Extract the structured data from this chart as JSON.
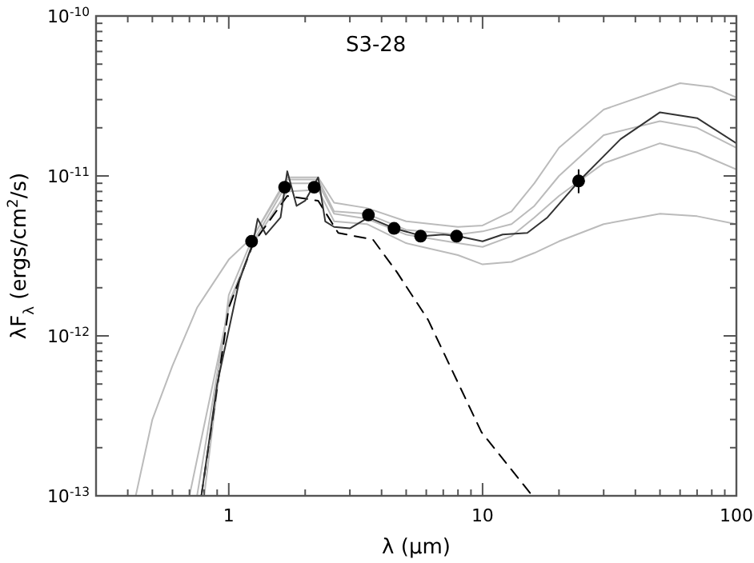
{
  "chart_data": {
    "type": "line",
    "title": "S3-28",
    "xlabel": "λ (μm)",
    "ylabel": "λF$_{λ}$ (ergs/cm$^{2}$/s)",
    "log": "xy",
    "grid": false,
    "xlim": [
      0.3,
      100
    ],
    "ylim": [
      1e-13,
      1e-10
    ],
    "xticks": [
      {
        "value": 0.4,
        "label": null
      },
      {
        "value": 0.5,
        "label": null
      },
      {
        "value": 0.6,
        "label": null
      },
      {
        "value": 0.7,
        "label": null
      },
      {
        "value": 0.8,
        "label": null
      },
      {
        "value": 0.9,
        "label": null
      },
      1,
      {
        "value": 2,
        "label": null
      },
      {
        "value": 3,
        "label": null
      },
      {
        "value": 4,
        "label": null
      },
      {
        "value": 5,
        "label": null
      },
      {
        "value": 6,
        "label": null
      },
      {
        "value": 7,
        "label": null
      },
      {
        "value": 8,
        "label": null
      },
      {
        "value": 9,
        "label": null
      },
      10,
      {
        "value": 20,
        "label": null
      },
      {
        "value": 30,
        "label": null
      },
      {
        "value": 40,
        "label": null
      },
      {
        "value": 50,
        "label": null
      },
      {
        "value": 60,
        "label": null
      },
      {
        "value": 70,
        "label": null
      },
      {
        "value": 80,
        "label": null
      },
      {
        "value": 90,
        "label": null
      },
      100
    ],
    "yticks": [
      {
        "value": 1e-13,
        "label": "10$^{-13}$"
      },
      {
        "value": 2e-13,
        "label": null
      },
      {
        "value": 3e-13,
        "label": null
      },
      {
        "value": 4e-13,
        "label": null
      },
      {
        "value": 5e-13,
        "label": null
      },
      {
        "value": 6e-13,
        "label": null
      },
      {
        "value": 7e-13,
        "label": null
      },
      {
        "value": 8e-13,
        "label": null
      },
      {
        "value": 9e-13,
        "label": null
      },
      {
        "value": 1e-12,
        "label": "10$^{-12}$"
      },
      {
        "value": 2e-12,
        "label": null
      },
      {
        "value": 3e-12,
        "label": null
      },
      {
        "value": 4e-12,
        "label": null
      },
      {
        "value": 5e-12,
        "label": null
      },
      {
        "value": 6e-12,
        "label": null
      },
      {
        "value": 7e-12,
        "label": null
      },
      {
        "value": 8e-12,
        "label": null
      },
      {
        "value": 9e-12,
        "label": null
      },
      {
        "value": 1e-11,
        "label": "10$^{-11}$"
      },
      {
        "value": 2e-11,
        "label": null
      },
      {
        "value": 3e-11,
        "label": null
      },
      {
        "value": 4e-11,
        "label": null
      },
      {
        "value": 5e-11,
        "label": null
      },
      {
        "value": 6e-11,
        "label": null
      },
      {
        "value": 7e-11,
        "label": null
      },
      {
        "value": 8e-11,
        "label": null
      },
      {
        "value": 9e-11,
        "label": null
      },
      {
        "value": 1e-10,
        "label": "10$^{-10}$"
      }
    ],
    "series": [
      {
        "color": "#bbbbbb",
        "marker": "none",
        "line_style": "solid",
        "x": [
          0.43,
          0.5,
          0.6,
          0.75,
          1.0,
          1.25,
          1.7,
          2.25,
          2.6,
          3.5,
          5,
          8,
          10,
          13,
          16,
          20,
          30,
          50,
          70,
          100
        ],
        "values": [
          1e-13,
          3e-13,
          6.5e-13,
          1.5e-12,
          3e-12,
          4.2e-12,
          9.5e-12,
          9.5e-12,
          6e-12,
          5.8e-12,
          4.6e-12,
          4.3e-12,
          4.5e-12,
          5e-12,
          6.5e-12,
          1e-11,
          1.8e-11,
          2.2e-11,
          2e-11,
          1.5e-11
        ]
      },
      {
        "color": "#bbbbbb",
        "marker": "none",
        "line_style": "solid",
        "x": [
          0.8,
          1.0,
          1.25,
          1.7,
          2.25,
          2.6,
          3.5,
          5,
          8,
          10,
          13,
          16,
          20,
          30,
          60,
          80,
          100
        ],
        "values": [
          1e-13,
          1.8e-12,
          4.2e-12,
          9.8e-12,
          9.8e-12,
          6.8e-12,
          6.3e-12,
          5.2e-12,
          4.8e-12,
          4.9e-12,
          6e-12,
          9e-12,
          1.5e-11,
          2.6e-11,
          3.8e-11,
          3.6e-11,
          3.1e-11
        ]
      },
      {
        "color": "#bbbbbb",
        "marker": "none",
        "line_style": "solid",
        "x": [
          0.75,
          1.0,
          1.25,
          1.7,
          2.25,
          2.6,
          3.5,
          5,
          8,
          10,
          13,
          16,
          20,
          30,
          50,
          70,
          100
        ],
        "values": [
          1e-13,
          1.6e-12,
          3.8e-12,
          8e-12,
          8.2e-12,
          5.2e-12,
          5e-12,
          3.8e-12,
          3.2e-12,
          2.8e-12,
          2.9e-12,
          3.3e-12,
          3.9e-12,
          5e-12,
          5.8e-12,
          5.6e-12,
          5e-12
        ]
      },
      {
        "color": "#bbbbbb",
        "marker": "none",
        "line_style": "solid",
        "x": [
          0.7,
          1.0,
          1.25,
          1.7,
          2.25,
          2.6,
          3.5,
          5,
          8,
          10,
          13,
          16,
          20,
          30,
          50,
          70,
          100
        ],
        "values": [
          1e-13,
          1.5e-12,
          3.9e-12,
          9e-12,
          9e-12,
          5.8e-12,
          5.4e-12,
          4.3e-12,
          3.8e-12,
          3.6e-12,
          4.2e-12,
          5.5e-12,
          7.5e-12,
          1.2e-11,
          1.6e-11,
          1.4e-11,
          1.1e-11
        ]
      },
      {
        "color": "#000000",
        "marker": "none",
        "line_style": "dashed",
        "x": [
          0.78,
          1.0,
          1.25,
          1.7,
          2.25,
          2.7,
          3.7,
          4.6,
          6.1,
          9.9,
          15.7
        ],
        "values": [
          1e-13,
          1.5e-12,
          3.8e-12,
          7.5e-12,
          7e-12,
          4.4e-12,
          4e-12,
          2.5e-12,
          1.26e-12,
          2.5e-13,
          1e-13
        ]
      },
      {
        "color": "#333333",
        "marker": "none",
        "line_style": "solid",
        "x": [
          0.78,
          0.9,
          1.1,
          1.25,
          1.3,
          1.4,
          1.6,
          1.7,
          1.85,
          2.0,
          2.25,
          2.4,
          2.6,
          3.0,
          3.55,
          4.5,
          5.8,
          7,
          8,
          10,
          12,
          15,
          18,
          24,
          35,
          50,
          70,
          100
        ],
        "values": [
          1e-13,
          5e-13,
          2.2e-12,
          3.9e-12,
          5.4e-12,
          4.3e-12,
          5.5e-12,
          1.07e-11,
          6.5e-12,
          7e-12,
          9.8e-12,
          5.2e-12,
          4.8e-12,
          4.7e-12,
          5.5e-12,
          4.7e-12,
          4.2e-12,
          4.3e-12,
          4.2e-12,
          3.9e-12,
          4.3e-12,
          4.4e-12,
          5.5e-12,
          9.3e-12,
          1.7e-11,
          2.5e-11,
          2.3e-11,
          1.6e-11
        ]
      },
      {
        "type": "scatter",
        "color": "#000000",
        "marker": "circle",
        "x": [
          1.23,
          1.66,
          2.17,
          3.55,
          4.48,
          5.7,
          7.9,
          23.9
        ],
        "values": [
          3.9e-12,
          8.5e-12,
          8.5e-12,
          5.7e-12,
          4.7e-12,
          4.2e-12,
          4.2e-12,
          9.3e-12
        ],
        "errors": [
          null,
          null,
          null,
          null,
          null,
          null,
          null,
          [
            7.8e-12,
            1.1e-11
          ]
        ]
      }
    ]
  }
}
